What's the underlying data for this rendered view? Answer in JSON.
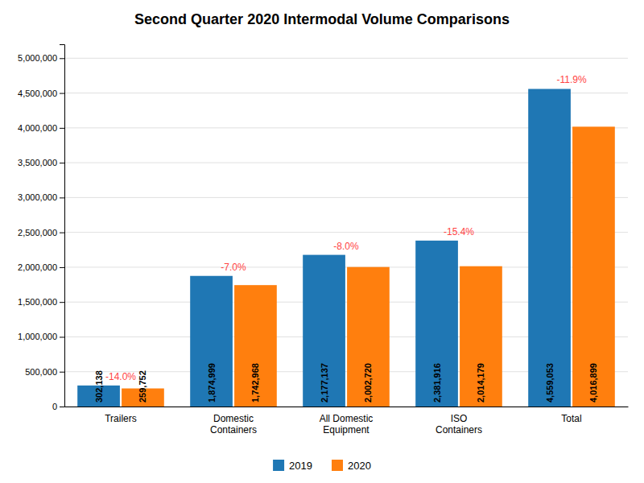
{
  "chart_data": {
    "type": "bar",
    "title": "Second Quarter 2020 Intermodal Volume Comparisons",
    "categories": [
      "Trailers",
      "Domestic\nContainers",
      "All Domestic\nEquipment",
      "ISO\nContainers",
      "Total"
    ],
    "series": [
      {
        "name": "2019",
        "values": [
          302138,
          1874999,
          2177137,
          2381916,
          4559053
        ],
        "value_labels": [
          "302,138",
          "1,874,999",
          "2,177,137",
          "2,381,916",
          "4,559,053"
        ]
      },
      {
        "name": "2020",
        "values": [
          259752,
          1742968,
          2002720,
          2014179,
          4016899
        ],
        "value_labels": [
          "259,752",
          "1,742,968",
          "2,002,720",
          "2,014,179",
          "4,016,899"
        ]
      }
    ],
    "annotations": [
      {
        "text": "-14.0%",
        "color": "#FF4444"
      },
      {
        "text": "-7.0%",
        "color": "#FF4444"
      },
      {
        "text": "-8.0%",
        "color": "#FF4444"
      },
      {
        "text": "-15.4%",
        "color": "#FF4444"
      },
      {
        "text": "-11.9%",
        "color": "#FF4444"
      }
    ],
    "ylim": [
      0,
      5200000
    ],
    "yticks": [
      0,
      {
        "value": 500000,
        "label": "500,000"
      },
      {
        "value": 1000000,
        "label": "1,000,000"
      },
      {
        "value": 1500000,
        "label": "1,500,000"
      },
      {
        "value": 2000000,
        "label": "2,000,000"
      },
      {
        "value": 2500000,
        "label": "2,500,000"
      },
      {
        "value": 3000000,
        "label": "3,000,000"
      },
      {
        "value": 3500000,
        "label": "3,500,000"
      },
      {
        "value": 4000000,
        "label": "4,000,000"
      },
      {
        "value": 4500000,
        "label": "4,500,000"
      },
      {
        "value": 5000000,
        "label": "5,000,000"
      }
    ],
    "grid": true,
    "data_labels": true,
    "legend": "bottom"
  }
}
